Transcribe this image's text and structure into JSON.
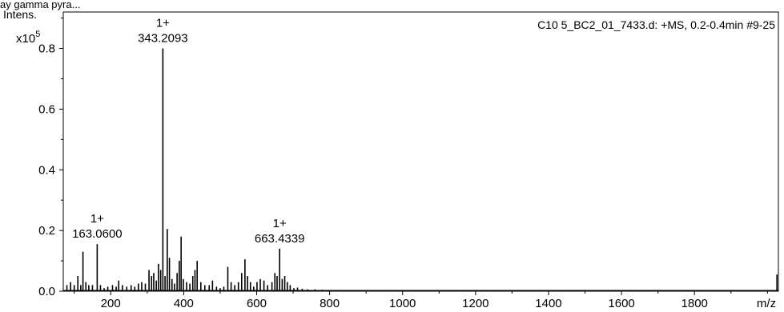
{
  "top_text": "ay gamma pyra...",
  "chart_data": {
    "type": "bar",
    "subtype": "mass-spectrum-stick",
    "title": "C10 5_BC2_01_7433.d: +MS, 0.2-0.4min #9-25",
    "ylabel_line1": "Intens.",
    "ylabel_line2_prefix": "x10",
    "ylabel_line2_exp": "5",
    "xlabel": "m/z",
    "xlim": [
      70,
      2030
    ],
    "ylim": [
      0,
      0.92
    ],
    "x_ticks": [
      200,
      400,
      600,
      800,
      1000,
      1200,
      1400,
      1600,
      1800
    ],
    "x_tick_labels": [
      "200",
      "400",
      "600",
      "800",
      "1000",
      "1200",
      "1400",
      "1600",
      "1800"
    ],
    "y_ticks": [
      0.0,
      0.2,
      0.4,
      0.6,
      0.8
    ],
    "y_tick_labels": [
      "0.0",
      "0.2",
      "0.4",
      "0.6",
      "0.8"
    ],
    "peaks": [
      {
        "x": 80,
        "y": 0.02
      },
      {
        "x": 90,
        "y": 0.03
      },
      {
        "x": 100,
        "y": 0.02
      },
      {
        "x": 110,
        "y": 0.05
      },
      {
        "x": 118,
        "y": 0.02
      },
      {
        "x": 124,
        "y": 0.13
      },
      {
        "x": 132,
        "y": 0.03
      },
      {
        "x": 140,
        "y": 0.02
      },
      {
        "x": 150,
        "y": 0.02
      },
      {
        "x": 163,
        "y": 0.155
      },
      {
        "x": 172,
        "y": 0.02
      },
      {
        "x": 182,
        "y": 0.01
      },
      {
        "x": 192,
        "y": 0.015
      },
      {
        "x": 205,
        "y": 0.02
      },
      {
        "x": 215,
        "y": 0.015
      },
      {
        "x": 222,
        "y": 0.035
      },
      {
        "x": 232,
        "y": 0.02
      },
      {
        "x": 244,
        "y": 0.015
      },
      {
        "x": 256,
        "y": 0.02
      },
      {
        "x": 266,
        "y": 0.015
      },
      {
        "x": 276,
        "y": 0.025
      },
      {
        "x": 285,
        "y": 0.03
      },
      {
        "x": 295,
        "y": 0.025
      },
      {
        "x": 305,
        "y": 0.07
      },
      {
        "x": 312,
        "y": 0.05
      },
      {
        "x": 318,
        "y": 0.06
      },
      {
        "x": 325,
        "y": 0.035
      },
      {
        "x": 331,
        "y": 0.09
      },
      {
        "x": 337,
        "y": 0.07
      },
      {
        "x": 343,
        "y": 0.8
      },
      {
        "x": 349,
        "y": 0.05
      },
      {
        "x": 355,
        "y": 0.205
      },
      {
        "x": 361,
        "y": 0.11
      },
      {
        "x": 368,
        "y": 0.04
      },
      {
        "x": 375,
        "y": 0.025
      },
      {
        "x": 382,
        "y": 0.06
      },
      {
        "x": 388,
        "y": 0.1
      },
      {
        "x": 393,
        "y": 0.18
      },
      {
        "x": 399,
        "y": 0.04
      },
      {
        "x": 408,
        "y": 0.03
      },
      {
        "x": 417,
        "y": 0.025
      },
      {
        "x": 425,
        "y": 0.05
      },
      {
        "x": 431,
        "y": 0.07
      },
      {
        "x": 437,
        "y": 0.1
      },
      {
        "x": 447,
        "y": 0.03
      },
      {
        "x": 458,
        "y": 0.02
      },
      {
        "x": 470,
        "y": 0.02
      },
      {
        "x": 479,
        "y": 0.035
      },
      {
        "x": 490,
        "y": 0.015
      },
      {
        "x": 500,
        "y": 0.01
      },
      {
        "x": 510,
        "y": 0.015
      },
      {
        "x": 521,
        "y": 0.08
      },
      {
        "x": 530,
        "y": 0.03
      },
      {
        "x": 540,
        "y": 0.02
      },
      {
        "x": 550,
        "y": 0.03
      },
      {
        "x": 559,
        "y": 0.06
      },
      {
        "x": 568,
        "y": 0.105
      },
      {
        "x": 575,
        "y": 0.05
      },
      {
        "x": 583,
        "y": 0.03
      },
      {
        "x": 592,
        "y": 0.015
      },
      {
        "x": 601,
        "y": 0.03
      },
      {
        "x": 610,
        "y": 0.04
      },
      {
        "x": 620,
        "y": 0.035
      },
      {
        "x": 630,
        "y": 0.02
      },
      {
        "x": 642,
        "y": 0.03
      },
      {
        "x": 650,
        "y": 0.06
      },
      {
        "x": 656,
        "y": 0.05
      },
      {
        "x": 663,
        "y": 0.14
      },
      {
        "x": 670,
        "y": 0.04
      },
      {
        "x": 677,
        "y": 0.05
      },
      {
        "x": 684,
        "y": 0.03
      },
      {
        "x": 692,
        "y": 0.02
      },
      {
        "x": 702,
        "y": 0.01
      },
      {
        "x": 712,
        "y": 0.012
      },
      {
        "x": 725,
        "y": 0.008
      },
      {
        "x": 740,
        "y": 0.006
      },
      {
        "x": 760,
        "y": 0.006
      },
      {
        "x": 780,
        "y": 0.005
      },
      {
        "x": 800,
        "y": 0.004
      },
      {
        "x": 850,
        "y": 0.004
      },
      {
        "x": 900,
        "y": 0.003
      },
      {
        "x": 950,
        "y": 0.003
      },
      {
        "x": 1000,
        "y": 0.003
      },
      {
        "x": 1100,
        "y": 0.002
      },
      {
        "x": 1200,
        "y": 0.002
      },
      {
        "x": 1300,
        "y": 0.002
      },
      {
        "x": 1400,
        "y": 0.002
      },
      {
        "x": 1500,
        "y": 0.002
      },
      {
        "x": 1600,
        "y": 0.002
      },
      {
        "x": 1700,
        "y": 0.002
      },
      {
        "x": 1800,
        "y": 0.002
      },
      {
        "x": 1900,
        "y": 0.002
      },
      {
        "x": 1990,
        "y": 0.003
      },
      {
        "x": 2026,
        "y": 0.055
      }
    ],
    "annotations": [
      {
        "charge": "1+",
        "mz_label": "343.2093",
        "x": 343,
        "y": 0.8
      },
      {
        "charge": "1+",
        "mz_label": "163.0600",
        "x": 163,
        "y": 0.155
      },
      {
        "charge": "1+",
        "mz_label": "663.4339",
        "x": 663,
        "y": 0.14
      }
    ],
    "colors": {
      "axis": "#000000",
      "peaks": "#000000",
      "background": "#ffffff"
    },
    "grid": false,
    "legend": "none"
  }
}
